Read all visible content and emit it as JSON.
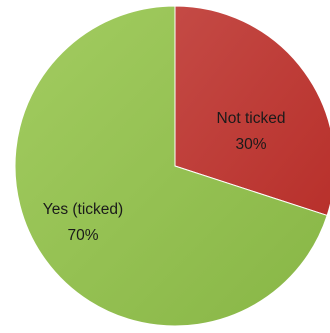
{
  "chart_data": {
    "type": "pie",
    "title": "",
    "slices": [
      {
        "label": "Not ticked",
        "value": 30,
        "value_label": "30%",
        "color": "#c0392b"
      },
      {
        "label": "Yes (ticked)",
        "value": 70,
        "value_label": "70%",
        "color": "#92c050"
      }
    ],
    "start_angle_deg": 0,
    "direction": "clockwise",
    "legend": "none"
  }
}
